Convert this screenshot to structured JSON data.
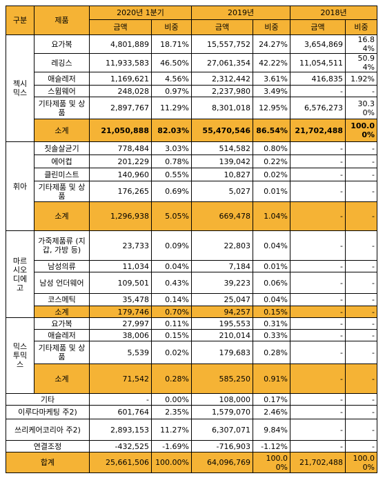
{
  "headers": {
    "category": "구분",
    "product": "제품",
    "periods": [
      "2020년 1분기",
      "2019년",
      "2018년"
    ],
    "amount": "금액",
    "ratio": "비중"
  },
  "groups": [
    {
      "name": "젝시\n믹스",
      "rows": [
        {
          "label": "요가복",
          "v": [
            "4,801,889",
            "18.71%",
            "15,557,752",
            "24.27%",
            "3,654,869",
            "16.84%"
          ]
        },
        {
          "label": "레깅스",
          "v": [
            "11,933,583",
            "46.50%",
            "27,061,354",
            "42.22%",
            "11,054,511",
            "50.94%"
          ]
        },
        {
          "label": "애슬레저",
          "v": [
            "1,169,621",
            "4.56%",
            "2,312,442",
            "3.61%",
            "416,835",
            "1.92%"
          ]
        },
        {
          "label": "스윔웨어",
          "v": [
            "248,028",
            "0.97%",
            "2,237,980",
            "3.49%",
            "-",
            "-"
          ]
        },
        {
          "label": "기타제품 및 상품",
          "v": [
            "2,897,767",
            "11.29%",
            "8,301,018",
            "12.95%",
            "6,576,273",
            "30.30%"
          ]
        },
        {
          "label": "소계",
          "subtotal": true,
          "v": [
            "21,050,888",
            "82.03%",
            "55,470,546",
            "86.54%",
            "21,702,488",
            "100.00%"
          ]
        }
      ]
    },
    {
      "name": "휘아",
      "rows": [
        {
          "label": "칫솔살균기",
          "v": [
            "778,484",
            "3.03%",
            "514,582",
            "0.80%",
            "-",
            "-"
          ]
        },
        {
          "label": "에어컵",
          "v": [
            "201,229",
            "0.78%",
            "139,042",
            "0.22%",
            "-",
            "-"
          ]
        },
        {
          "label": "클린미스트",
          "v": [
            "140,960",
            "0.55%",
            "10,827",
            "0.02%",
            "-",
            "-"
          ]
        },
        {
          "label": "기타제품 및 상품",
          "v": [
            "176,265",
            "0.69%",
            "5,027",
            "0.01%",
            "-",
            "-"
          ]
        },
        {
          "label": "소계",
          "subtotal": true,
          "v": [
            "1,296,938",
            "5.05%",
            "669,478",
            "1.04%",
            "-",
            "-"
          ]
        }
      ]
    },
    {
      "name": "마르\n시오\n디에\n고",
      "rows": [
        {
          "label": "가죽제품류 (지갑, 가방 등)",
          "v": [
            "23,733",
            "0.09%",
            "22,803",
            "0.04%",
            "-",
            "-"
          ]
        },
        {
          "label": "남성의류",
          "v": [
            "11,034",
            "0.04%",
            "7,184",
            "0.01%",
            "-",
            "-"
          ]
        },
        {
          "label": "남성 언더웨어",
          "v": [
            "109,501",
            "0.43%",
            "39,223",
            "0.06%",
            "-",
            "-"
          ]
        },
        {
          "label": "코스메틱",
          "v": [
            "35,478",
            "0.14%",
            "25,047",
            "0.04%",
            "-",
            "-"
          ]
        },
        {
          "label": "소계",
          "subtotal": true,
          "v": [
            "179,746",
            "0.70%",
            "94,257",
            "0.15%",
            "-",
            "-"
          ]
        }
      ]
    },
    {
      "name": "믹스\n투믹\n스",
      "rows": [
        {
          "label": "요가복",
          "v": [
            "27,997",
            "0.11%",
            "195,553",
            "0.31%",
            "-",
            "-"
          ]
        },
        {
          "label": "애슬레저",
          "v": [
            "38,006",
            "0.15%",
            "210,014",
            "0.33%",
            "-",
            "-"
          ]
        },
        {
          "label": "기타제품 및 상품",
          "v": [
            "5,539",
            "0.02%",
            "179,683",
            "0.28%",
            "-",
            "-"
          ]
        },
        {
          "label": "소계",
          "subtotal": true,
          "v": [
            "71,542",
            "0.28%",
            "585,250",
            "0.91%",
            "-",
            "-"
          ]
        }
      ]
    }
  ],
  "extra_rows": [
    {
      "label": "기타",
      "v": [
        "-",
        "0.00%",
        "108,000",
        "0.17%",
        "-",
        "-"
      ]
    },
    {
      "label": "이루다마케팅 주2)",
      "v": [
        "601,764",
        "2.35%",
        "1,579,070",
        "2.46%",
        "-",
        "-"
      ]
    },
    {
      "label": "쓰리케어코리아 주2)",
      "v": [
        "2,893,153",
        "11.27%",
        "6,307,071",
        "9.84%",
        "-",
        "-"
      ]
    },
    {
      "label": "연결조정",
      "v": [
        "-432,525",
        "-1.69%",
        "-716,903",
        "-1.12%",
        "-",
        "-"
      ]
    }
  ],
  "total_row": {
    "label": "합계",
    "v": [
      "25,661,506",
      "100.00%",
      "64,096,769",
      "100.00%",
      "21,702,488",
      "100.00%"
    ]
  }
}
